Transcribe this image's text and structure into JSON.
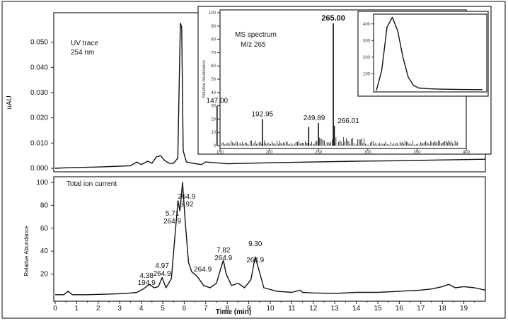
{
  "figure": {
    "uv_panel": {
      "title": "UV trace",
      "subtitle": "254 nm",
      "ylabel": "uAU",
      "y_ticks": [
        "0.000",
        "0.010",
        "0.020",
        "0.030",
        "0.040",
        "0.050"
      ]
    },
    "tic_panel": {
      "title": "Total ion current",
      "ylabel": "Relative Abundance",
      "y_ticks": [
        "20",
        "40",
        "60",
        "80",
        "100"
      ],
      "xlabel": "Time (min)",
      "x_ticks": [
        "0",
        "1",
        "2",
        "3",
        "4",
        "5",
        "6",
        "7",
        "8",
        "9",
        "10",
        "11",
        "12",
        "13",
        "14",
        "15",
        "16",
        "17",
        "18",
        "19"
      ],
      "annotations": [
        {
          "time": "4.38",
          "mz": "194.9"
        },
        {
          "time": "4.97",
          "mz": "264.9"
        },
        {
          "time": "5.71",
          "mz": "264.9"
        },
        {
          "time": "5.92",
          "mz": "264.9"
        },
        {
          "mz": "264.9"
        },
        {
          "time": "7.82",
          "mz": "264.9"
        },
        {
          "time": "9.30",
          "mz": "264.9"
        }
      ]
    },
    "ms_inset": {
      "title": "MS spectrum",
      "subtitle": "M/z 265",
      "ylabel": "Relative Abundance",
      "y_ticks": [
        "0",
        "10",
        "20",
        "30",
        "40",
        "50",
        "60",
        "70",
        "80",
        "90",
        "100"
      ],
      "x_ticks": [
        "150",
        "200",
        "250",
        "300",
        "350",
        "400"
      ],
      "peak_labels": [
        "147.00",
        "192.95",
        "249.89",
        "265.00",
        "266.01"
      ]
    },
    "uv_inset": {
      "y_ticks": [
        "100",
        "200",
        "300",
        "400"
      ]
    }
  },
  "chart_data": [
    {
      "type": "line",
      "title": "UV trace",
      "subtitle": "254 nm",
      "ylabel": "uAU",
      "xlim": [
        0,
        20
      ],
      "ylim": [
        0,
        0.06
      ],
      "series": [
        {
          "x": [
            0.0,
            0.5,
            1.0,
            2.0,
            3.0,
            3.5,
            3.8,
            4.0,
            4.3,
            4.5,
            4.7,
            4.9,
            5.1,
            5.3,
            5.5,
            5.7,
            5.82,
            5.88,
            5.95,
            6.1,
            6.4,
            6.8,
            7.0,
            8.0,
            9.0,
            10.0,
            12.0,
            14.0,
            16.0,
            18.0,
            20.0
          ],
          "y": [
            0.0,
            0.0002,
            0.0003,
            0.0005,
            0.0008,
            0.001,
            0.0025,
            0.0015,
            0.0028,
            0.002,
            0.0045,
            0.005,
            0.003,
            0.002,
            0.002,
            0.004,
            0.0575,
            0.056,
            0.007,
            0.0025,
            0.002,
            0.0015,
            0.0025,
            0.0018,
            0.002,
            0.0022,
            0.0025,
            0.0028,
            0.003,
            0.0033,
            0.0036
          ]
        }
      ]
    },
    {
      "type": "line",
      "title": "Total ion current",
      "xlabel": "Time (min)",
      "ylabel": "Relative Abundance",
      "xlim": [
        0,
        20
      ],
      "ylim": [
        0,
        100
      ],
      "series": [
        {
          "x": [
            0.0,
            0.4,
            0.6,
            0.8,
            1.5,
            2.5,
            3.3,
            3.8,
            4.1,
            4.38,
            4.6,
            4.8,
            4.97,
            5.15,
            5.4,
            5.6,
            5.71,
            5.8,
            5.92,
            6.05,
            6.2,
            6.35,
            6.6,
            6.9,
            7.2,
            7.5,
            7.7,
            7.82,
            7.95,
            8.2,
            8.5,
            8.8,
            9.1,
            9.3,
            9.45,
            9.7,
            10.3,
            11.0,
            11.4,
            11.5,
            12.0,
            13.0,
            14.0,
            15.0,
            16.0,
            17.0,
            17.5,
            18.0,
            18.3,
            18.6,
            19.0,
            19.5,
            20.0
          ],
          "y": [
            2,
            2,
            5,
            2,
            2,
            2.5,
            3,
            4,
            7,
            11,
            8,
            9,
            17,
            8,
            16,
            60,
            84,
            75,
            100,
            65,
            30,
            22,
            18,
            10,
            8,
            12,
            25,
            32,
            20,
            10,
            12,
            8,
            15,
            35,
            25,
            8,
            5,
            4,
            6,
            4,
            3.5,
            3,
            4,
            4,
            5,
            6,
            7,
            9,
            11,
            8,
            9,
            8,
            6
          ]
        }
      ],
      "annotations": [
        {
          "x": 4.38,
          "text": [
            "4.38",
            "194.9"
          ]
        },
        {
          "x": 4.97,
          "text": [
            "4.97",
            "264.9"
          ]
        },
        {
          "x": 5.71,
          "text": [
            "5.71",
            "264.9"
          ]
        },
        {
          "x": 5.92,
          "text": [
            "264.9",
            "5.92"
          ]
        },
        {
          "x": 6.6,
          "text": [
            "264.9"
          ]
        },
        {
          "x": 7.82,
          "text": [
            "7.82",
            "264.9"
          ]
        },
        {
          "x": 9.3,
          "text": [
            "9.30",
            "264.9"
          ]
        }
      ]
    },
    {
      "type": "bar",
      "title": "MS spectrum",
      "subtitle": "M/z 265",
      "ylabel": "Relative Abundance",
      "xlim": [
        150,
        400
      ],
      "ylim": [
        0,
        100
      ],
      "peaks": [
        {
          "mz": 147.0,
          "intensity": 30,
          "label": "147.00"
        },
        {
          "mz": 192.95,
          "intensity": 20,
          "label": "192.95"
        },
        {
          "mz": 240.0,
          "intensity": 14
        },
        {
          "mz": 249.89,
          "intensity": 17,
          "label": "249.89"
        },
        {
          "mz": 265.0,
          "intensity": 92,
          "label": "265.00"
        },
        {
          "mz": 266.01,
          "intensity": 15,
          "label": "266.01"
        }
      ]
    },
    {
      "type": "line",
      "ylim": [
        0,
        450
      ],
      "series": [
        {
          "x": [
            0,
            0.05,
            0.1,
            0.15,
            0.2,
            0.25,
            0.3,
            0.35,
            0.4,
            0.5,
            0.6,
            0.8,
            1.0
          ],
          "y": [
            0,
            120,
            380,
            440,
            360,
            200,
            80,
            30,
            15,
            10,
            8,
            6,
            5
          ]
        }
      ]
    }
  ]
}
